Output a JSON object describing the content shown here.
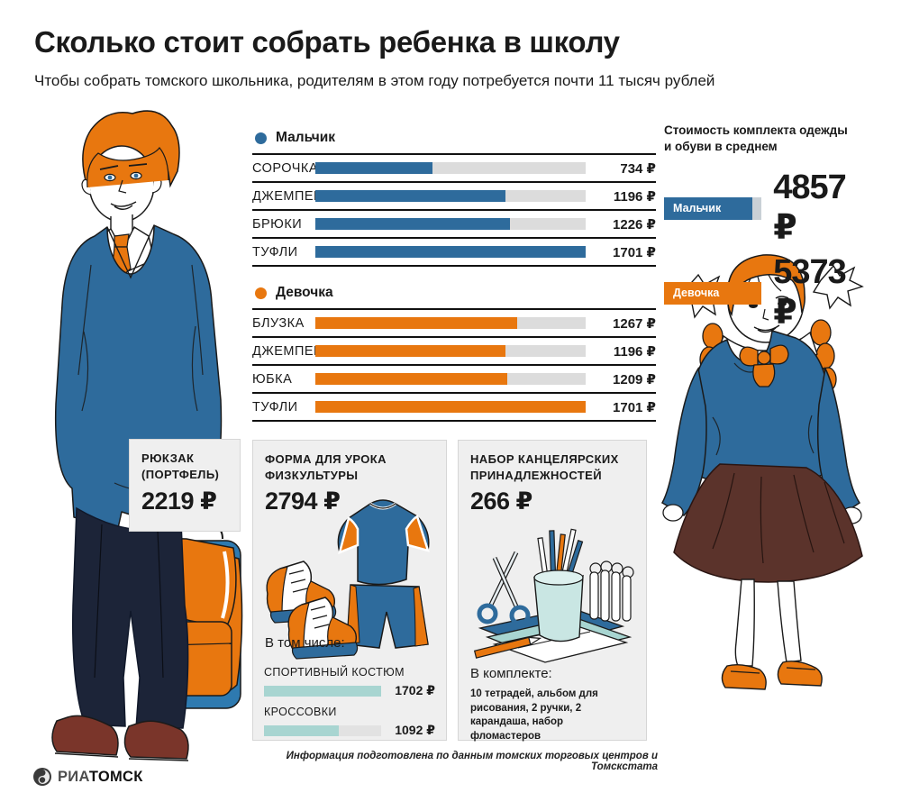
{
  "header": {
    "title": "Сколько стоит собрать ребенка в школу",
    "subtitle": "Чтобы собрать томского школьника, родителям в этом году потребуется почти 11 тысяч рублей"
  },
  "chart_data": [
    {
      "type": "bar",
      "title": "Мальчик",
      "categories": [
        "СОРОЧКА",
        "ДЖЕМПЕР",
        "БРЮКИ",
        "ТУФЛИ"
      ],
      "values": [
        734,
        1196,
        1226,
        1701
      ],
      "labels": [
        "734 ₽",
        "1196 ₽",
        "1226 ₽",
        "1701 ₽"
      ],
      "max": 1701,
      "bar_color": "#2e6b9c",
      "track_color": "#dcdcdc",
      "unit": "₽",
      "legend_position": "top"
    },
    {
      "type": "bar",
      "title": "Девочка",
      "categories": [
        "БЛУЗКА",
        "ДЖЕМПЕР",
        "ЮБКА",
        "ТУФЛИ"
      ],
      "values": [
        1267,
        1196,
        1209,
        1701
      ],
      "labels": [
        "1267 ₽",
        "1196 ₽",
        "1209 ₽",
        "1701 ₽"
      ],
      "max": 1701,
      "bar_color": "#e8770f",
      "track_color": "#dcdcdc",
      "unit": "₽",
      "legend_position": "top"
    },
    {
      "type": "bar",
      "title": "Стоимость комплекта одежды и обуви в среднем",
      "categories": [
        "Мальчик",
        "Девочка"
      ],
      "values": [
        4857,
        5373
      ],
      "labels": [
        "4857 ₽",
        "5373 ₽"
      ],
      "max": 5373,
      "bar_colors": [
        "#2e6b9c",
        "#e8770f"
      ],
      "unit": "₽"
    },
    {
      "type": "bar",
      "title": "В том числе:",
      "categories": [
        "СПОРТИВНЫЙ КОСТЮМ",
        "КРОССОВКИ"
      ],
      "values": [
        1702,
        1092
      ],
      "labels": [
        "1702 ₽",
        "1092 ₽"
      ],
      "max": 1702,
      "bar_color": "#a8d5d1",
      "unit": "₽"
    }
  ],
  "summary": {
    "title_line1": "Стоимость комплекта одежды",
    "title_line2": "и обуви в среднем"
  },
  "boxes": {
    "backpack": {
      "title_line1": "РЮКЗАК",
      "title_line2": "(ПОРТФЕЛЬ)",
      "price": "2219 ₽"
    },
    "sport": {
      "title_line1": "ФОРМА ДЛЯ УРОКА",
      "title_line2": "ФИЗКУЛЬТУРЫ",
      "price": "2794 ₽",
      "sublist_title": "В том числе:"
    },
    "stationery": {
      "title_line1": "НАБОР КАНЦЕЛЯРСКИХ",
      "title_line2": "ПРИНАДЛЕЖНОСТЕЙ",
      "price": "266 ₽",
      "kit_title": "В комплекте:",
      "kit_items": "10 тетрадей, альбом для рисования, 2 ручки, 2 карандаша, набор фломастеров"
    }
  },
  "footer": {
    "source": "Информация подготовлена по данным томских торговых центров и Томскстата",
    "logo_ria": "РИА",
    "logo_tomsk": "ТОМСК"
  },
  "colors": {
    "boy_blue": "#2e6b9c",
    "girl_orange": "#e8770f",
    "teal": "#a8d5d1",
    "trousers_navy": "#1c2438",
    "shoes_brown": "#7a352a",
    "skirt_brown": "#5b332b"
  }
}
